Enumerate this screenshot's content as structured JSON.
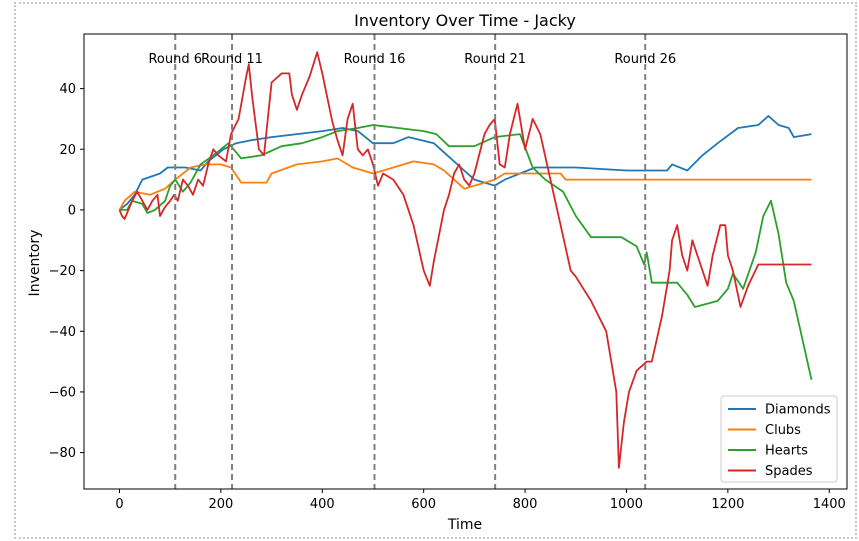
{
  "chart_data": {
    "type": "line",
    "title": "Inventory Over Time - Jacky",
    "xlabel": "Time",
    "ylabel": "Inventory",
    "xlim": [
      -70,
      1435
    ],
    "ylim": [
      -92,
      58
    ],
    "x_ticks": [
      0,
      200,
      400,
      600,
      800,
      1000,
      1200,
      1400
    ],
    "y_ticks": [
      -80,
      -60,
      -40,
      -20,
      0,
      20,
      40
    ],
    "grid": false,
    "legend_position": "lower-right",
    "round_markers": [
      {
        "x": 110,
        "label": "Round 6"
      },
      {
        "x": 222,
        "label": "Round 11"
      },
      {
        "x": 503,
        "label": "Round 16"
      },
      {
        "x": 741,
        "label": "Round 21"
      },
      {
        "x": 1037,
        "label": "Round 26"
      }
    ],
    "series": [
      {
        "name": "Diamonds",
        "color": "#1f77b4",
        "points": [
          [
            0,
            0
          ],
          [
            15,
            2
          ],
          [
            30,
            5
          ],
          [
            45,
            10
          ],
          [
            80,
            12
          ],
          [
            95,
            14
          ],
          [
            130,
            14
          ],
          [
            160,
            13
          ],
          [
            175,
            16
          ],
          [
            205,
            20
          ],
          [
            230,
            22
          ],
          [
            260,
            23
          ],
          [
            300,
            24
          ],
          [
            350,
            25
          ],
          [
            400,
            26
          ],
          [
            440,
            27
          ],
          [
            470,
            26
          ],
          [
            500,
            22
          ],
          [
            540,
            22
          ],
          [
            570,
            24
          ],
          [
            620,
            22
          ],
          [
            680,
            13
          ],
          [
            700,
            10
          ],
          [
            740,
            8
          ],
          [
            760,
            10
          ],
          [
            790,
            12
          ],
          [
            820,
            14
          ],
          [
            900,
            14
          ],
          [
            1000,
            13
          ],
          [
            1080,
            13
          ],
          [
            1090,
            15
          ],
          [
            1120,
            13
          ],
          [
            1150,
            18
          ],
          [
            1180,
            22
          ],
          [
            1220,
            27
          ],
          [
            1260,
            28
          ],
          [
            1280,
            31
          ],
          [
            1300,
            28
          ],
          [
            1320,
            27
          ],
          [
            1330,
            24
          ],
          [
            1365,
            25
          ]
        ]
      },
      {
        "name": "Clubs",
        "color": "#ff7f0e",
        "points": [
          [
            0,
            0
          ],
          [
            10,
            3
          ],
          [
            30,
            6
          ],
          [
            60,
            5
          ],
          [
            90,
            7
          ],
          [
            110,
            10
          ],
          [
            140,
            14
          ],
          [
            170,
            15
          ],
          [
            200,
            15
          ],
          [
            220,
            14
          ],
          [
            240,
            9
          ],
          [
            290,
            9
          ],
          [
            300,
            12
          ],
          [
            350,
            15
          ],
          [
            400,
            16
          ],
          [
            430,
            17
          ],
          [
            460,
            14
          ],
          [
            500,
            12
          ],
          [
            540,
            14
          ],
          [
            580,
            16
          ],
          [
            620,
            15
          ],
          [
            640,
            13
          ],
          [
            660,
            10
          ],
          [
            680,
            7
          ],
          [
            700,
            8
          ],
          [
            740,
            10
          ],
          [
            760,
            12
          ],
          [
            800,
            12
          ],
          [
            870,
            12
          ],
          [
            880,
            10
          ],
          [
            950,
            10
          ],
          [
            1100,
            10
          ],
          [
            1365,
            10
          ]
        ]
      },
      {
        "name": "Hearts",
        "color": "#2ca02c",
        "points": [
          [
            0,
            0
          ],
          [
            15,
            0
          ],
          [
            25,
            3
          ],
          [
            45,
            2
          ],
          [
            55,
            -1
          ],
          [
            70,
            0
          ],
          [
            90,
            3
          ],
          [
            100,
            8
          ],
          [
            110,
            10
          ],
          [
            125,
            6
          ],
          [
            140,
            9
          ],
          [
            160,
            15
          ],
          [
            185,
            18
          ],
          [
            215,
            22
          ],
          [
            240,
            17
          ],
          [
            280,
            18
          ],
          [
            320,
            21
          ],
          [
            360,
            22
          ],
          [
            400,
            24
          ],
          [
            430,
            26
          ],
          [
            470,
            27
          ],
          [
            500,
            28
          ],
          [
            550,
            27
          ],
          [
            600,
            26
          ],
          [
            625,
            25
          ],
          [
            650,
            21
          ],
          [
            700,
            21
          ],
          [
            740,
            24
          ],
          [
            790,
            25
          ],
          [
            815,
            14
          ],
          [
            840,
            10
          ],
          [
            875,
            6
          ],
          [
            900,
            -2
          ],
          [
            930,
            -9
          ],
          [
            990,
            -9
          ],
          [
            1020,
            -12
          ],
          [
            1035,
            -18
          ],
          [
            1040,
            -14
          ],
          [
            1050,
            -24
          ],
          [
            1100,
            -24
          ],
          [
            1120,
            -28
          ],
          [
            1135,
            -32
          ],
          [
            1180,
            -30
          ],
          [
            1200,
            -26
          ],
          [
            1210,
            -21
          ],
          [
            1230,
            -26
          ],
          [
            1255,
            -14
          ],
          [
            1270,
            -2
          ],
          [
            1285,
            3
          ],
          [
            1300,
            -8
          ],
          [
            1315,
            -24
          ],
          [
            1330,
            -30
          ],
          [
            1365,
            -56
          ]
        ]
      },
      {
        "name": "Spades",
        "color": "#d62728",
        "points": [
          [
            0,
            0
          ],
          [
            5,
            -2
          ],
          [
            10,
            -3
          ],
          [
            15,
            -1
          ],
          [
            25,
            3
          ],
          [
            35,
            6
          ],
          [
            45,
            3
          ],
          [
            55,
            0
          ],
          [
            65,
            3
          ],
          [
            75,
            5
          ],
          [
            80,
            -2
          ],
          [
            90,
            1
          ],
          [
            100,
            3
          ],
          [
            108,
            5
          ],
          [
            115,
            3
          ],
          [
            125,
            10
          ],
          [
            135,
            8
          ],
          [
            145,
            5
          ],
          [
            155,
            10
          ],
          [
            165,
            8
          ],
          [
            175,
            15
          ],
          [
            185,
            20
          ],
          [
            195,
            18
          ],
          [
            210,
            16
          ],
          [
            220,
            25
          ],
          [
            235,
            30
          ],
          [
            250,
            44
          ],
          [
            255,
            48
          ],
          [
            262,
            37
          ],
          [
            275,
            20
          ],
          [
            285,
            18
          ],
          [
            300,
            42
          ],
          [
            320,
            45
          ],
          [
            335,
            45
          ],
          [
            340,
            38
          ],
          [
            350,
            33
          ],
          [
            360,
            38
          ],
          [
            375,
            44
          ],
          [
            390,
            52
          ],
          [
            400,
            45
          ],
          [
            410,
            37
          ],
          [
            420,
            29
          ],
          [
            430,
            23
          ],
          [
            440,
            18
          ],
          [
            450,
            30
          ],
          [
            460,
            35
          ],
          [
            470,
            20
          ],
          [
            480,
            18
          ],
          [
            490,
            20
          ],
          [
            500,
            15
          ],
          [
            510,
            8
          ],
          [
            520,
            12
          ],
          [
            540,
            10
          ],
          [
            560,
            5
          ],
          [
            580,
            -5
          ],
          [
            600,
            -20
          ],
          [
            612,
            -25
          ],
          [
            620,
            -17
          ],
          [
            640,
            0
          ],
          [
            650,
            5
          ],
          [
            660,
            12
          ],
          [
            670,
            15
          ],
          [
            680,
            10
          ],
          [
            690,
            8
          ],
          [
            700,
            12
          ],
          [
            720,
            25
          ],
          [
            730,
            28
          ],
          [
            740,
            30
          ],
          [
            750,
            15
          ],
          [
            760,
            14
          ],
          [
            770,
            25
          ],
          [
            785,
            35
          ],
          [
            800,
            20
          ],
          [
            815,
            30
          ],
          [
            830,
            25
          ],
          [
            850,
            10
          ],
          [
            870,
            -5
          ],
          [
            890,
            -20
          ],
          [
            900,
            -22
          ],
          [
            930,
            -30
          ],
          [
            960,
            -40
          ],
          [
            970,
            -50
          ],
          [
            980,
            -60
          ],
          [
            985,
            -85
          ],
          [
            995,
            -70
          ],
          [
            1005,
            -60
          ],
          [
            1020,
            -53
          ],
          [
            1040,
            -50
          ],
          [
            1050,
            -50
          ],
          [
            1070,
            -35
          ],
          [
            1085,
            -20
          ],
          [
            1090,
            -10
          ],
          [
            1100,
            -5
          ],
          [
            1110,
            -15
          ],
          [
            1120,
            -20
          ],
          [
            1130,
            -10
          ],
          [
            1140,
            -15
          ],
          [
            1160,
            -25
          ],
          [
            1170,
            -15
          ],
          [
            1185,
            -5
          ],
          [
            1195,
            -5
          ],
          [
            1200,
            -15
          ],
          [
            1210,
            -20
          ],
          [
            1225,
            -32
          ],
          [
            1240,
            -25
          ],
          [
            1260,
            -18
          ],
          [
            1300,
            -18
          ],
          [
            1365,
            -18
          ]
        ]
      }
    ]
  }
}
